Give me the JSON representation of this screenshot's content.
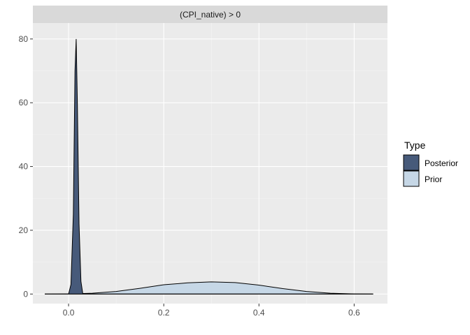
{
  "chart_data": {
    "type": "area",
    "facet_label": "(CPI_native) > 0",
    "xlabel": "",
    "ylabel": "",
    "xlim": [
      -0.075,
      0.67
    ],
    "ylim": [
      -3,
      85
    ],
    "x_ticks": [
      0.0,
      0.2,
      0.4,
      0.6
    ],
    "x_tick_labels": [
      "0.0",
      "0.2",
      "0.4",
      "0.6"
    ],
    "y_ticks": [
      0,
      20,
      40,
      60,
      80
    ],
    "y_tick_labels": [
      "0",
      "20",
      "40",
      "60",
      "80"
    ],
    "grid": true,
    "legend": {
      "title": "Type",
      "position": "right",
      "entries": [
        {
          "label": "Posterior",
          "color": "#475a7a"
        },
        {
          "label": "Prior",
          "color": "#c6d7e6"
        }
      ]
    },
    "series": [
      {
        "name": "Prior",
        "color": "#c6d7e6",
        "x": [
          -0.05,
          0.0,
          0.05,
          0.1,
          0.15,
          0.2,
          0.25,
          0.3,
          0.35,
          0.4,
          0.45,
          0.5,
          0.55,
          0.6,
          0.64
        ],
        "values": [
          0.0,
          0.05,
          0.25,
          0.8,
          1.8,
          2.9,
          3.5,
          3.8,
          3.6,
          2.8,
          1.7,
          0.8,
          0.25,
          0.05,
          0.0
        ]
      },
      {
        "name": "Posterior",
        "color": "#475a7a",
        "x": [
          -0.05,
          0.0,
          0.005,
          0.01,
          0.0135,
          0.016,
          0.0185,
          0.022,
          0.026,
          0.03,
          0.04,
          0.64
        ],
        "values": [
          0.0,
          0.0,
          3.0,
          25.0,
          70.0,
          80.0,
          60.0,
          22.0,
          4.0,
          0.0,
          0.0,
          0.0
        ]
      }
    ]
  },
  "colors": {
    "panel_bg": "#ebebeb",
    "strip_bg": "#d9d9d9",
    "grid_major": "#ffffff",
    "outline": "#000000"
  }
}
